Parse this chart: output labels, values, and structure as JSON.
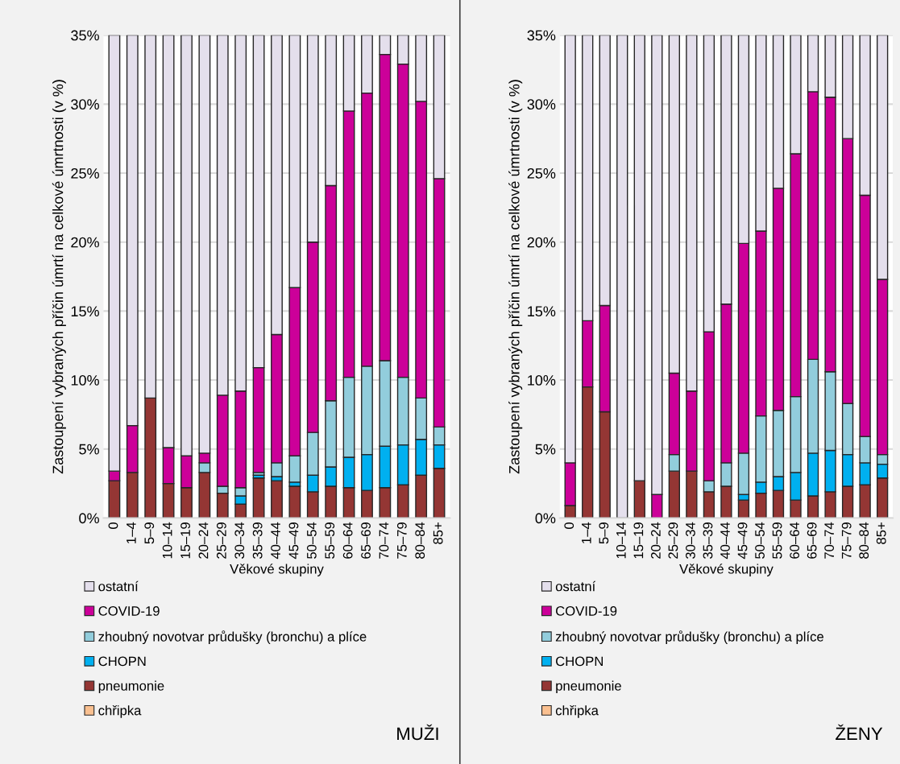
{
  "chart_data": [
    {
      "type": "bar",
      "stacked": true,
      "xlabel": "Věkové skupiny",
      "ylabel": "Zastoupení vybraných příčin úmrtí na celkové úmrtnosti (v %)",
      "annotations": [
        "MUŽI"
      ],
      "categories": [
        "0",
        "1–4",
        "5–9",
        "10–14",
        "15–19",
        "20–24",
        "25–29",
        "30–34",
        "35–39",
        "40–44",
        "45–49",
        "50–54",
        "55–59",
        "60–64",
        "65–69",
        "70–74",
        "75–79",
        "80–84",
        "85+"
      ],
      "ylim": [
        0,
        35
      ],
      "yticks": [
        {
          "value": 0,
          "label": "0%"
        },
        {
          "value": 5,
          "label": "5%"
        },
        {
          "value": 10,
          "label": "10%"
        },
        {
          "value": 15,
          "label": "15%"
        },
        {
          "value": 20,
          "label": "20%"
        },
        {
          "value": 25,
          "label": "25%"
        },
        {
          "value": 30,
          "label": "30%"
        },
        {
          "value": 35,
          "label": "35%"
        }
      ],
      "grid": "y",
      "legend": "bottom",
      "series": [
        {
          "name": "chřipka",
          "color": "#fac090",
          "values": [
            0,
            0,
            0,
            0,
            0,
            0,
            0,
            0,
            0,
            0,
            0,
            0,
            0,
            0,
            0,
            0,
            0,
            0,
            0
          ]
        },
        {
          "name": "pneumonie",
          "color": "#943634",
          "values": [
            2.7,
            3.3,
            8.7,
            2.5,
            2.2,
            3.3,
            1.8,
            1.0,
            2.9,
            2.7,
            2.3,
            1.9,
            2.3,
            2.2,
            2.0,
            2.2,
            2.4,
            3.1,
            3.6
          ]
        },
        {
          "name": "CHOPN",
          "color": "#00b0f0",
          "values": [
            0,
            0,
            0,
            0,
            0,
            0,
            0,
            0.6,
            0.2,
            0.3,
            0.3,
            1.2,
            1.4,
            2.2,
            2.6,
            3.0,
            2.9,
            2.6,
            1.7
          ]
        },
        {
          "name": "zhoubný novotvar průdušky (bronchu) a plíce",
          "color": "#92cddc",
          "values": [
            0,
            0,
            0,
            0,
            0,
            0.7,
            0.5,
            0.6,
            0.2,
            1.0,
            1.9,
            3.1,
            4.8,
            5.8,
            6.4,
            6.2,
            4.9,
            3.0,
            1.3
          ]
        },
        {
          "name": "COVID-19",
          "color": "#cc0099",
          "values": [
            0.7,
            3.4,
            0,
            2.6,
            2.3,
            0.7,
            6.6,
            7.0,
            7.6,
            9.3,
            12.2,
            13.8,
            15.6,
            19.3,
            19.8,
            22.2,
            22.7,
            21.5,
            18.0
          ]
        },
        {
          "name": "ostatní",
          "color": "#e4dfec",
          "values": [
            31.6,
            28.3,
            26.3,
            29.9,
            30.5,
            30.3,
            26.1,
            25.8,
            24.1,
            21.7,
            18.3,
            15.0,
            10.9,
            5.5,
            4.2,
            1.4,
            2.1,
            4.8,
            10.4
          ]
        }
      ]
    },
    {
      "type": "bar",
      "stacked": true,
      "xlabel": "Věkové skupiny",
      "ylabel": "Zastoupení vybraných příčin úmrtí na celkové úmrtnosti (v %)",
      "annotations": [
        "ŽENY"
      ],
      "categories": [
        "0",
        "1–4",
        "5–9",
        "10–14",
        "15–19",
        "20–24",
        "25–29",
        "30–34",
        "35–39",
        "40–44",
        "45–49",
        "50–54",
        "55–59",
        "60–64",
        "65–69",
        "70–74",
        "75–79",
        "80–84",
        "85+"
      ],
      "ylim": [
        0,
        35
      ],
      "yticks": [
        {
          "value": 0,
          "label": "0%"
        },
        {
          "value": 5,
          "label": "5%"
        },
        {
          "value": 10,
          "label": "10%"
        },
        {
          "value": 15,
          "label": "15%"
        },
        {
          "value": 20,
          "label": "20%"
        },
        {
          "value": 25,
          "label": "25%"
        },
        {
          "value": 30,
          "label": "30%"
        },
        {
          "value": 35,
          "label": "35%"
        }
      ],
      "grid": "y",
      "legend": "bottom",
      "series": [
        {
          "name": "chřipka",
          "color": "#fac090",
          "values": [
            0,
            0,
            0,
            0,
            0,
            0,
            0,
            0,
            0,
            0,
            0,
            0,
            0,
            0,
            0,
            0,
            0,
            0,
            0
          ]
        },
        {
          "name": "pneumonie",
          "color": "#943634",
          "values": [
            0.9,
            9.5,
            7.7,
            0,
            2.7,
            0,
            3.4,
            3.4,
            1.9,
            2.3,
            1.3,
            1.8,
            2.0,
            1.3,
            1.6,
            1.9,
            2.3,
            2.4,
            2.9
          ]
        },
        {
          "name": "CHOPN",
          "color": "#00b0f0",
          "values": [
            0,
            0,
            0,
            0,
            0,
            0,
            0,
            0,
            0,
            0,
            0.4,
            0.8,
            1.0,
            2.0,
            3.1,
            3.0,
            2.3,
            1.6,
            1.0
          ]
        },
        {
          "name": "zhoubný novotvar průdušky (bronchu) a plíce",
          "color": "#92cddc",
          "values": [
            0,
            0,
            0,
            0,
            0,
            0,
            1.2,
            0,
            0.8,
            1.7,
            3.0,
            4.8,
            4.8,
            5.5,
            6.8,
            5.7,
            3.7,
            1.9,
            0.7
          ]
        },
        {
          "name": "COVID-19",
          "color": "#cc0099",
          "values": [
            3.1,
            4.8,
            7.7,
            0,
            0,
            1.7,
            5.9,
            5.8,
            10.8,
            11.5,
            15.2,
            13.4,
            16.1,
            17.6,
            19.4,
            19.9,
            19.2,
            17.5,
            12.7
          ]
        },
        {
          "name": "ostatní",
          "color": "#e4dfec",
          "values": [
            31.0,
            20.7,
            19.6,
            35.0,
            32.3,
            33.3,
            24.5,
            25.8,
            21.5,
            19.5,
            15.1,
            14.2,
            11.1,
            8.6,
            4.1,
            4.5,
            7.5,
            11.6,
            17.7
          ]
        }
      ]
    }
  ]
}
